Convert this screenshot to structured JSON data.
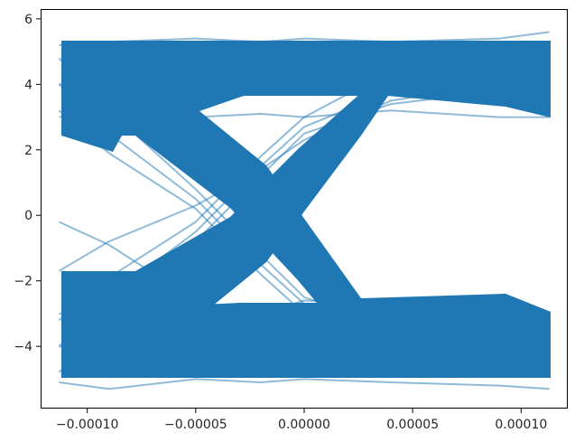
{
  "chart_data": {
    "type": "line",
    "title": "",
    "xlabel": "",
    "ylabel": "",
    "xlim": [
      -0.0001215,
      0.0001215
    ],
    "ylim": [
      -5.9,
      6.3
    ],
    "grid": false,
    "legend": "none",
    "series_color": "#1f77b4",
    "series_alpha": 0.5,
    "x_ticks": [
      {
        "value": -0.0001,
        "label": "−0.00010"
      },
      {
        "value": -5e-05,
        "label": "−0.00005"
      },
      {
        "value": 0.0,
        "label": "0.00000"
      },
      {
        "value": 5e-05,
        "label": "0.00005"
      },
      {
        "value": 0.0001,
        "label": "0.00010"
      }
    ],
    "y_ticks": [
      {
        "value": -4,
        "label": "−4"
      },
      {
        "value": -2,
        "label": "−2"
      },
      {
        "value": 0,
        "label": "0"
      },
      {
        "value": 2,
        "label": "2"
      },
      {
        "value": 4,
        "label": "4"
      },
      {
        "value": 6,
        "label": "6"
      }
    ],
    "series": [
      {
        "x": [
          -0.000113,
          -9e-05,
          -5e-05,
          -2e-05,
          0.0,
          4e-05,
          9e-05,
          0.000113
        ],
        "values": [
          4.0,
          4.1,
          4.0,
          4.1,
          4.0,
          4.1,
          4.0,
          4.0
        ]
      },
      {
        "x": [
          -0.000113,
          -9e-05,
          -5e-05,
          -2e-05,
          0.0,
          4e-05,
          9e-05,
          0.000113
        ],
        "values": [
          5.2,
          5.3,
          5.4,
          5.3,
          5.4,
          5.3,
          5.4,
          5.6
        ]
      },
      {
        "x": [
          -0.000113,
          -9e-05,
          -5e-05,
          -2e-05,
          0.0,
          4e-05,
          9e-05,
          0.000113
        ],
        "values": [
          3.0,
          3.3,
          3.0,
          3.1,
          3.0,
          3.2,
          3.0,
          3.0
        ]
      },
      {
        "x": [
          -0.000113,
          -9e-05,
          -5e-05,
          -2e-05,
          0.0,
          4e-05,
          9e-05,
          0.000113
        ],
        "values": [
          -4.0,
          -4.1,
          -4.0,
          -4.1,
          -4.0,
          -4.1,
          -4.0,
          -4.0
        ]
      },
      {
        "x": [
          -0.000113,
          -9e-05,
          -5e-05,
          -2e-05,
          0.0,
          4e-05,
          9e-05,
          0.000113
        ],
        "values": [
          -5.1,
          -5.3,
          -5.0,
          -5.1,
          -5.0,
          -5.1,
          -5.2,
          -5.3
        ]
      },
      {
        "x": [
          -0.000113,
          -9e-05,
          -5e-05,
          -2e-05,
          0.0,
          4e-05,
          9e-05,
          0.000113
        ],
        "values": [
          -3.0,
          -3.2,
          -3.1,
          -3.0,
          -3.1,
          -3.0,
          -3.1,
          -3.0
        ]
      },
      {
        "x": [
          -0.000113,
          -9e-05,
          -5e-05,
          -2e-05,
          0.0,
          4e-05,
          9e-05,
          0.000113
        ],
        "values": [
          4.0,
          2.5,
          0.5,
          -1.5,
          -2.7,
          -3.8,
          -4.0,
          -4.0
        ]
      },
      {
        "x": [
          -0.000113,
          -9e-05,
          -5e-05,
          -2e-05,
          0.0,
          4e-05,
          9e-05,
          0.000113
        ],
        "values": [
          4.8,
          3.2,
          0.8,
          -1.2,
          -2.5,
          -3.4,
          -3.8,
          -3.9
        ]
      },
      {
        "x": [
          -0.000113,
          -9e-05,
          -5e-05,
          -2e-05,
          0.0,
          4e-05,
          9e-05,
          0.000113
        ],
        "values": [
          3.2,
          1.9,
          0.2,
          -1.8,
          -3.0,
          -4.4,
          -4.5,
          -4.6
        ]
      },
      {
        "x": [
          -0.000113,
          -9e-05,
          -5e-05,
          -2e-05,
          0.0,
          4e-05,
          9e-05,
          0.000113
        ],
        "values": [
          -4.0,
          -2.5,
          -0.5,
          1.5,
          2.7,
          3.8,
          4.0,
          4.0
        ]
      },
      {
        "x": [
          -0.000113,
          -9e-05,
          -5e-05,
          -2e-05,
          0.0,
          4e-05,
          9e-05,
          0.000113
        ],
        "values": [
          -4.8,
          -3.2,
          -0.8,
          1.2,
          2.5,
          3.4,
          3.8,
          3.9
        ]
      },
      {
        "x": [
          -0.000113,
          -9e-05,
          -5e-05,
          -2e-05,
          0.0,
          4e-05,
          9e-05,
          0.000113
        ],
        "values": [
          -3.2,
          -1.9,
          -0.2,
          1.8,
          3.0,
          4.4,
          4.5,
          4.6
        ]
      },
      {
        "x": [
          -0.000113,
          -9e-05,
          -5e-05,
          -2e-05,
          0.0,
          4e-05,
          9e-05,
          0.000113
        ],
        "values": [
          -0.2,
          -0.9,
          -2.6,
          -3.0,
          -2.6,
          -2.7,
          -3.6,
          -3.8
        ]
      },
      {
        "x": [
          -0.000113,
          -9e-05,
          -5e-05,
          -2e-05,
          0.0,
          4e-05,
          9e-05,
          0.000113
        ],
        "values": [
          -1.7,
          -0.8,
          0.3,
          1.4,
          2.3,
          3.5,
          4.0,
          4.1
        ]
      }
    ]
  }
}
